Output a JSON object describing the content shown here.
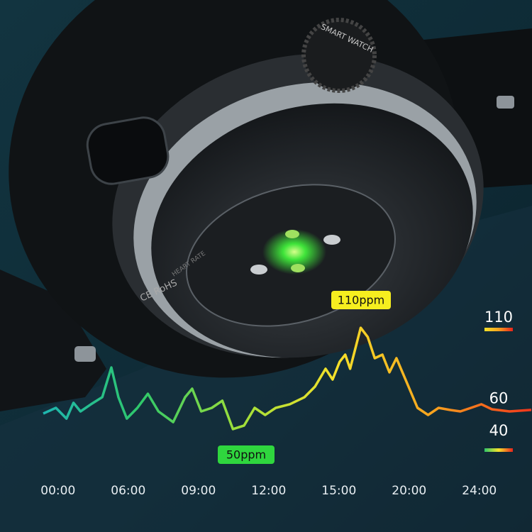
{
  "chart_data": {
    "type": "line",
    "series": [
      {
        "name": "Heart rate",
        "colors": [
          "#1fb6b0",
          "#2fc86a",
          "#9ee03a",
          "#f5e12a",
          "#f7a21e",
          "#f2361c"
        ],
        "x": [
          -0.21,
          -0.03,
          0.12,
          0.22,
          0.32,
          0.47,
          0.63,
          0.76,
          0.86,
          0.98,
          1.13,
          1.28,
          1.43,
          1.64,
          1.81,
          1.91,
          2.04,
          2.19,
          2.34,
          2.49,
          2.65,
          2.8,
          2.95,
          3.1,
          3.3,
          3.51,
          3.66,
          3.81,
          3.91,
          4.01,
          4.09,
          4.16,
          4.31,
          4.41,
          4.51,
          4.62,
          4.72,
          4.82,
          4.97,
          5.12,
          5.27,
          5.42,
          5.58,
          5.73,
          5.88,
          6.03,
          6.18,
          6.43,
          6.74
        ],
        "values": [
          56.2,
          59.7,
          53.1,
          62.8,
          57.5,
          61.9,
          66.3,
          84.6,
          66.3,
          53.1,
          59.7,
          68.4,
          57.5,
          50.9,
          66.3,
          71.5,
          57.5,
          59.7,
          64.1,
          46.6,
          48.8,
          59.7,
          55.3,
          59.7,
          61.9,
          66.3,
          72.8,
          83.8,
          77.2,
          88.1,
          92.5,
          83.8,
          109.1,
          103.4,
          90.3,
          92.5,
          81.6,
          90.3,
          75.0,
          59.7,
          55.3,
          59.7,
          58.4,
          57.5,
          59.7,
          61.9,
          58.8,
          57.5,
          58.4
        ]
      }
    ],
    "xlim": [
      -0.2,
      6.75
    ],
    "xticks": [
      {
        "value": 0,
        "label": "00:00"
      },
      {
        "value": 1,
        "label": "06:00"
      },
      {
        "value": 2,
        "label": "09:00"
      },
      {
        "value": 3,
        "label": "12:00"
      },
      {
        "value": 4,
        "label": "15:00"
      },
      {
        "value": 5,
        "label": "20:00"
      },
      {
        "value": 6,
        "label": "24:00"
      }
    ],
    "ylim": [
      40,
      110
    ],
    "yticks": [
      110,
      60,
      40
    ],
    "annotations": [
      "110ppm",
      "50ppm"
    ]
  },
  "watch_labels": {
    "crown": "SMART WATCH",
    "back": "CE RoHS",
    "ring": "HEART RATE"
  }
}
